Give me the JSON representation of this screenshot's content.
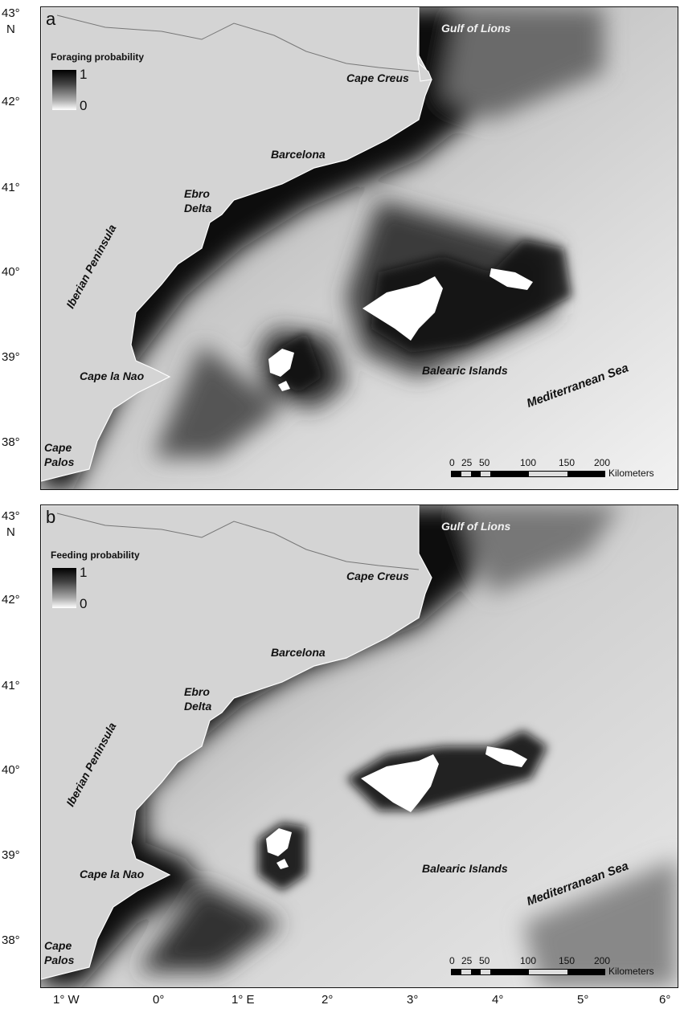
{
  "panels": [
    {
      "letter": "a",
      "legend_title": "Foraging probability",
      "legend_max": "1",
      "legend_min": "0"
    },
    {
      "letter": "b",
      "legend_title": "Feeding probability",
      "legend_max": "1",
      "legend_min": "0"
    }
  ],
  "place_labels": {
    "gulf": "Gulf of Lions",
    "creus": "Cape Creus",
    "barcelona": "Barcelona",
    "ebro_1": "Ebro",
    "ebro_2": "Delta",
    "iberian": "Iberian Peninsula",
    "nao": "Cape la Nao",
    "palos_1": "Cape",
    "palos_2": "Palos",
    "balearic": "Balearic Islands",
    "med": "Mediterranean Sea"
  },
  "scale": {
    "ticks": [
      "0",
      "25",
      "50",
      "100",
      "150",
      "200"
    ],
    "unit": "Kilometers"
  },
  "lat_labels": [
    "43°",
    "N",
    "42°",
    "41°",
    "40°",
    "39°",
    "38°"
  ],
  "lon_labels": [
    "1° W",
    "0°",
    "1° E",
    "2°",
    "3°",
    "4°",
    "5°",
    "6°"
  ],
  "colors": {
    "land": "#d4d4d4",
    "high": "#000000",
    "low": "#ffffff"
  }
}
